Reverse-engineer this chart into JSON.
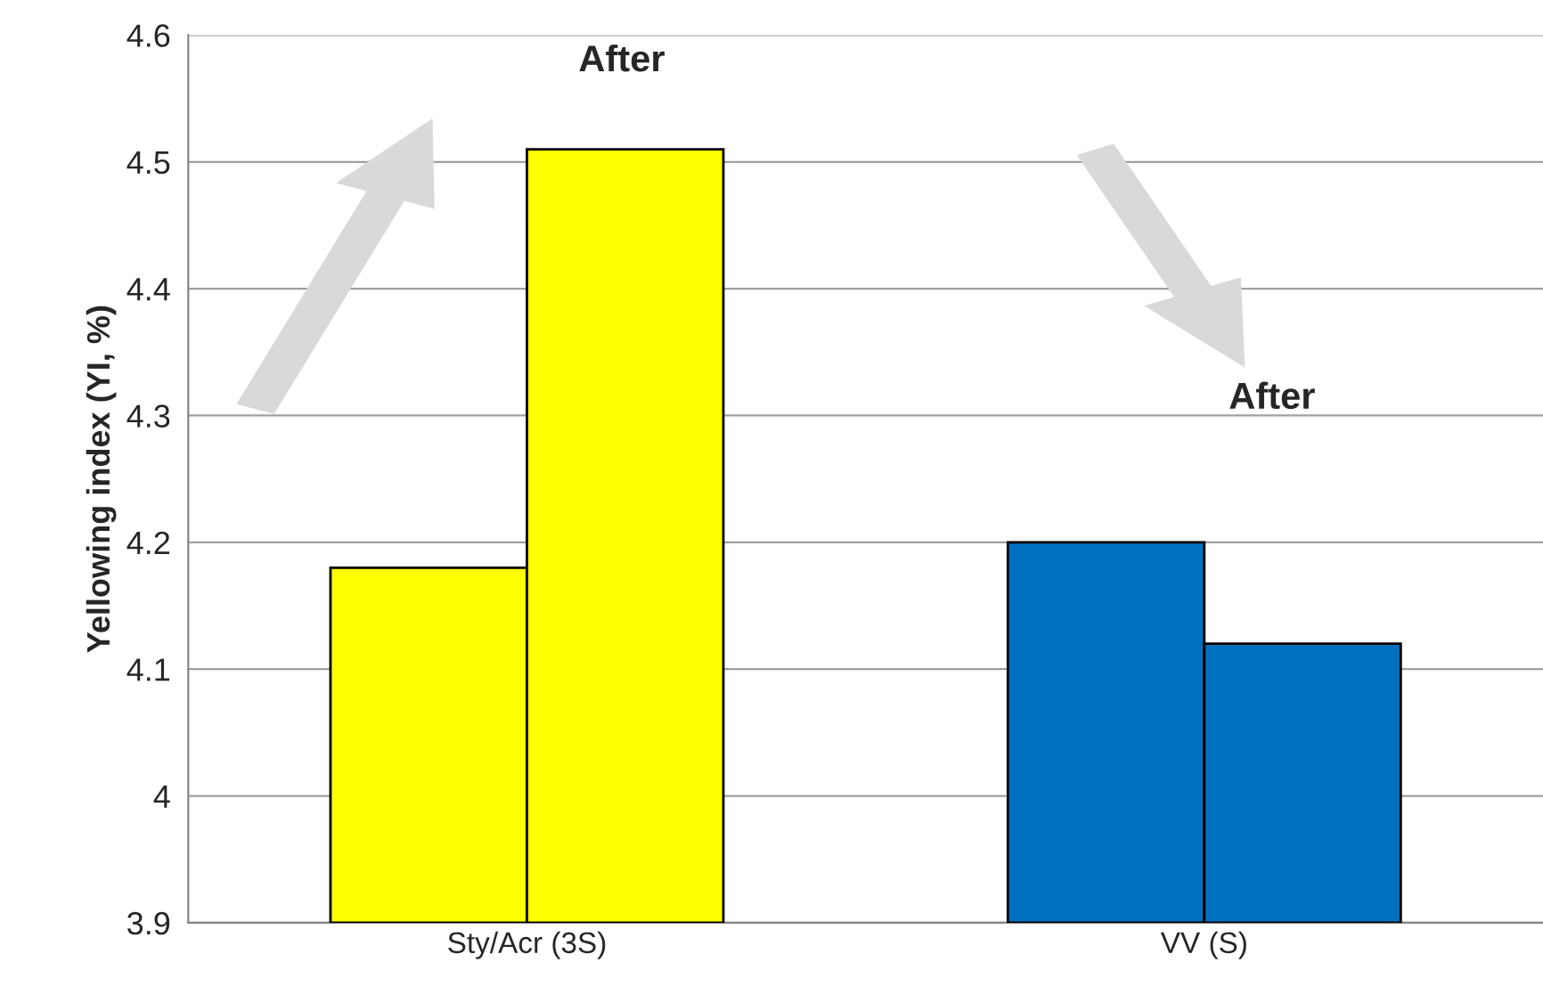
{
  "chart_data": {
    "type": "bar",
    "ylabel": "Yellowing index (YI, %)",
    "categories": [
      "Sty/Acr (3S)",
      "VV (S)"
    ],
    "series": [
      {
        "colors": [
          "#ffff00",
          "#0070c0"
        ],
        "values": [
          4.18,
          4.2
        ]
      },
      {
        "colors": [
          "#ffff00",
          "#0070c0"
        ],
        "values": [
          4.51,
          4.12
        ]
      }
    ],
    "ylim": [
      3.9,
      4.6
    ],
    "yticks": [
      3.9,
      4,
      4.1,
      4.2,
      4.3,
      4.4,
      4.5,
      4.6
    ],
    "grid": "y",
    "legend": false,
    "annotations": [
      "After",
      "After"
    ]
  }
}
